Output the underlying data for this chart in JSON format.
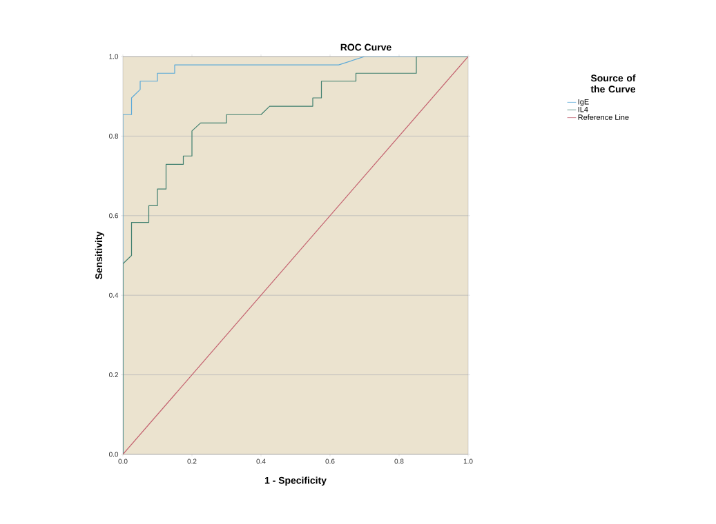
{
  "chart_data": {
    "type": "line",
    "title": "ROC Curve",
    "xlabel": "1 - Specificity",
    "ylabel": "Sensitivity",
    "legend_title": "Source of the Curve",
    "series": [
      {
        "name": "IgE",
        "color": "#5aa9d8",
        "x": [
          0,
          0,
          0.025,
          0.025,
          0.05,
          0.05,
          0.1,
          0.1,
          0.15,
          0.15,
          0.625,
          0.7,
          1
        ],
        "values": [
          0,
          0.854,
          0.854,
          0.896,
          0.917,
          0.938,
          0.938,
          0.958,
          0.958,
          0.979,
          0.979,
          1,
          1
        ]
      },
      {
        "name": "IL4",
        "color": "#3f7f6e",
        "x": [
          0,
          0,
          0.025,
          0.025,
          0.075,
          0.075,
          0.1,
          0.1,
          0.125,
          0.125,
          0.175,
          0.175,
          0.2,
          0.2,
          0.225,
          0.3,
          0.3,
          0.4,
          0.425,
          0.55,
          0.55,
          0.575,
          0.575,
          0.675,
          0.675,
          0.85,
          0.85,
          1
        ],
        "values": [
          0,
          0.479,
          0.5,
          0.583,
          0.583,
          0.625,
          0.625,
          0.667,
          0.667,
          0.729,
          0.729,
          0.75,
          0.75,
          0.813,
          0.833,
          0.833,
          0.854,
          0.854,
          0.875,
          0.875,
          0.896,
          0.896,
          0.938,
          0.938,
          0.958,
          0.958,
          1,
          1
        ]
      },
      {
        "name": "Reference Line",
        "color": "#c3606e",
        "x": [
          0,
          1
        ],
        "values": [
          0,
          1
        ]
      }
    ],
    "xlim": [
      0,
      1
    ],
    "ylim": [
      0,
      1
    ],
    "xticks": [
      {
        "value": 0,
        "label": "0.0"
      },
      {
        "value": 0.2,
        "label": "0.2"
      },
      {
        "value": 0.4,
        "label": "0.4"
      },
      {
        "value": 0.6,
        "label": "0.6"
      },
      {
        "value": 0.8,
        "label": "0.8"
      },
      {
        "value": 1,
        "label": "1.0"
      }
    ],
    "yticks": [
      {
        "value": 0,
        "label": "0.0"
      },
      {
        "value": 0.2,
        "label": "0.2"
      },
      {
        "value": 0.4,
        "label": "0.4"
      },
      {
        "value": 0.6,
        "label": "0.6"
      },
      {
        "value": 0.8,
        "label": "0.8"
      },
      {
        "value": 1,
        "label": "1.0"
      }
    ],
    "grid": "y",
    "legend": "right",
    "marker": "none",
    "line_style": "solid"
  }
}
